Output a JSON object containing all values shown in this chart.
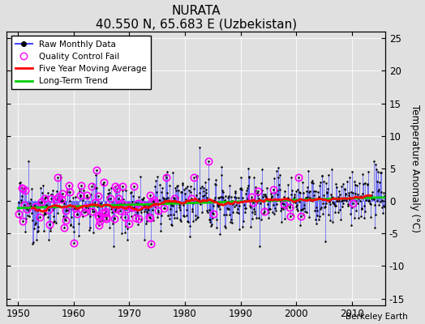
{
  "title": "NURATA",
  "subtitle": "40.550 N, 65.683 E (Uzbekistan)",
  "watermark": "Berkeley Earth",
  "ylabel": "Temperature Anomaly (°C)",
  "xlim": [
    1948,
    2016
  ],
  "ylim": [
    -16,
    26
  ],
  "yticks": [
    -15,
    -10,
    -5,
    0,
    5,
    10,
    15,
    20,
    25
  ],
  "xticks": [
    1950,
    1960,
    1970,
    1980,
    1990,
    2000,
    2010
  ],
  "stem_color": "#4444ff",
  "dot_color": "#000000",
  "qc_color": "#ff00ff",
  "moving_avg_color": "#ff0000",
  "trend_color": "#00cc00",
  "background_color": "#e0e0e0",
  "grid_color": "#ffffff",
  "seed": 12345
}
